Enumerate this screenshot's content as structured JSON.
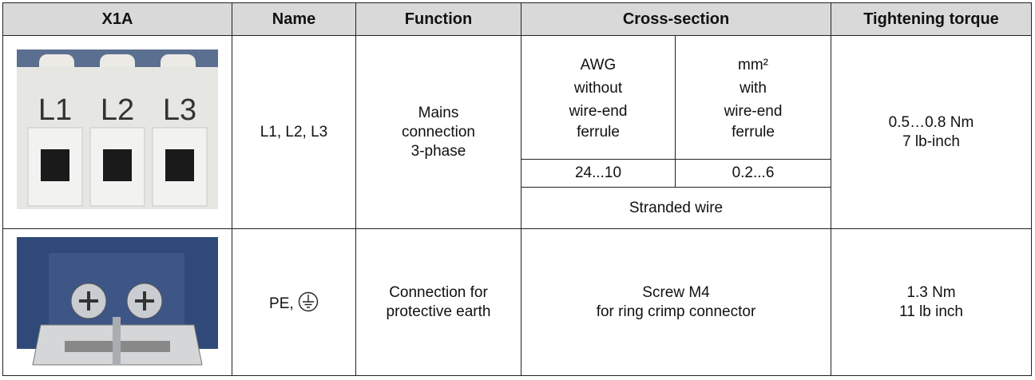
{
  "table": {
    "header": [
      "X1A",
      "Name",
      "Function",
      "Cross-section",
      "Tightening torque"
    ],
    "rows": [
      {
        "image_labels": [
          "L1",
          "L2",
          "L3"
        ],
        "name": "L1, L2, L3",
        "function": [
          "Mains",
          "connection",
          "3-phase"
        ],
        "cross_section": {
          "awg": [
            "AWG",
            "without",
            "wire-end",
            "ferrule"
          ],
          "mm2": [
            "mm²",
            "with",
            "wire-end",
            "ferrule"
          ],
          "awg_range": "24...10",
          "mm2_range": "0.2...6",
          "note": "Stranded wire"
        },
        "torque": [
          "0.5…0.8 Nm",
          "7 lb-inch"
        ]
      },
      {
        "name": "PE,",
        "function": [
          "Connection for",
          "protective earth"
        ],
        "cross_section": [
          "Screw M4",
          "for ring crimp connector"
        ],
        "torque": [
          "1.3 Nm",
          "11 lb inch"
        ]
      }
    ]
  }
}
